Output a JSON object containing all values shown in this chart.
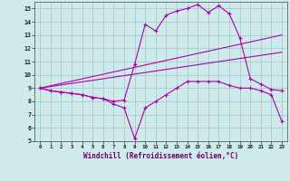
{
  "xlabel": "Windchill (Refroidissement éolien,°C)",
  "xlim": [
    -0.5,
    23.5
  ],
  "ylim": [
    5,
    15.5
  ],
  "xticks": [
    0,
    1,
    2,
    3,
    4,
    5,
    6,
    7,
    8,
    9,
    10,
    11,
    12,
    13,
    14,
    15,
    16,
    17,
    18,
    19,
    20,
    21,
    22,
    23
  ],
  "yticks": [
    5,
    6,
    7,
    8,
    9,
    10,
    11,
    12,
    13,
    14,
    15
  ],
  "bg_color": "#ceeaea",
  "line_color": "#aa00aa",
  "grid_color": "#aacccc",
  "series1_x": [
    0,
    1,
    2,
    3,
    4,
    5,
    6,
    7,
    8,
    9,
    10,
    11,
    12,
    13,
    14,
    15,
    16,
    17,
    18,
    19,
    20,
    21,
    22,
    23
  ],
  "series1_y": [
    9.0,
    8.8,
    8.7,
    8.6,
    8.5,
    8.3,
    8.2,
    8.0,
    8.1,
    10.8,
    13.8,
    13.3,
    14.5,
    14.8,
    15.0,
    15.3,
    14.7,
    15.2,
    14.6,
    12.8,
    9.7,
    9.3,
    8.9,
    8.8
  ],
  "series2_x": [
    0,
    1,
    2,
    3,
    4,
    5,
    6,
    7,
    8,
    9,
    10,
    11,
    12,
    13,
    14,
    15,
    16,
    17,
    18,
    19,
    20,
    21,
    22,
    23
  ],
  "series2_y": [
    9.0,
    8.8,
    8.7,
    8.6,
    8.5,
    8.3,
    8.2,
    7.8,
    7.5,
    5.2,
    7.5,
    8.0,
    8.5,
    9.0,
    9.5,
    9.5,
    9.5,
    9.5,
    9.2,
    9.0,
    9.0,
    8.8,
    8.5,
    6.5
  ],
  "series3_x": [
    0,
    23
  ],
  "series3_y": [
    9.0,
    13.0
  ],
  "series4_x": [
    0,
    23
  ],
  "series4_y": [
    9.0,
    11.7
  ]
}
